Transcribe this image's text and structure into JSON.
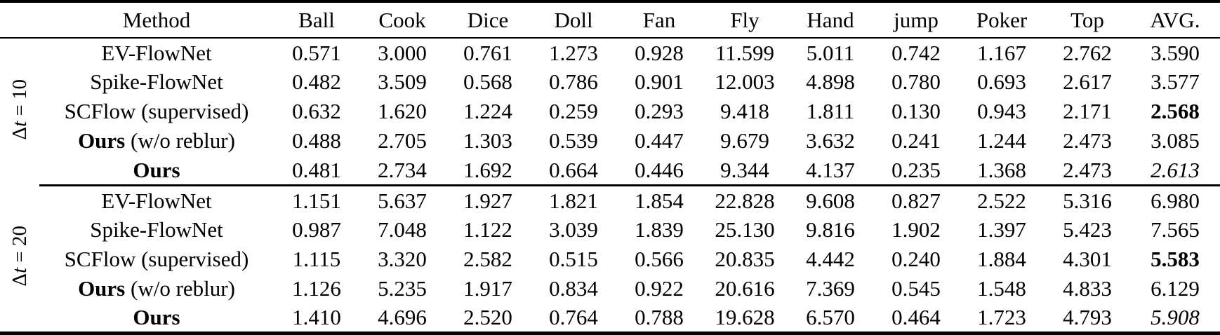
{
  "colors": {
    "text": "#000000",
    "background": "#ffffff",
    "rule": "#000000"
  },
  "table": {
    "columns": [
      "Method",
      "Ball",
      "Cook",
      "Dice",
      "Doll",
      "Fan",
      "Fly",
      "Hand",
      "jump",
      "Poker",
      "Top",
      "AVG."
    ],
    "groups": [
      {
        "label": {
          "delta": "Δ",
          "variable": "t",
          "rest": " = 10"
        },
        "rows": [
          {
            "method": {
              "bold": "",
              "rest": "EV-FlowNet"
            },
            "values": [
              "0.571",
              "3.000",
              "0.761",
              "1.273",
              "0.928",
              "11.599",
              "5.011",
              "0.742",
              "1.167",
              "2.762"
            ],
            "avg": {
              "text": "3.590",
              "style": "normal"
            }
          },
          {
            "method": {
              "bold": "",
              "rest": "Spike-FlowNet"
            },
            "values": [
              "0.482",
              "3.509",
              "0.568",
              "0.786",
              "0.901",
              "12.003",
              "4.898",
              "0.780",
              "0.693",
              "2.617"
            ],
            "avg": {
              "text": "3.577",
              "style": "normal"
            }
          },
          {
            "method": {
              "bold": "",
              "rest": "SCFlow (supervised)"
            },
            "values": [
              "0.632",
              "1.620",
              "1.224",
              "0.259",
              "0.293",
              "9.418",
              "1.811",
              "0.130",
              "0.943",
              "2.171"
            ],
            "avg": {
              "text": "2.568",
              "style": "bold"
            }
          },
          {
            "method": {
              "bold": "Ours",
              "rest": " (w/o reblur)"
            },
            "values": [
              "0.488",
              "2.705",
              "1.303",
              "0.539",
              "0.447",
              "9.679",
              "3.632",
              "0.241",
              "1.244",
              "2.473"
            ],
            "avg": {
              "text": "3.085",
              "style": "normal"
            }
          },
          {
            "method": {
              "bold": "Ours",
              "rest": ""
            },
            "values": [
              "0.481",
              "2.734",
              "1.692",
              "0.664",
              "0.446",
              "9.344",
              "4.137",
              "0.235",
              "1.368",
              "2.473"
            ],
            "avg": {
              "text": "2.613",
              "style": "italic"
            }
          }
        ]
      },
      {
        "label": {
          "delta": "Δ",
          "variable": "t",
          "rest": " = 20"
        },
        "rows": [
          {
            "method": {
              "bold": "",
              "rest": "EV-FlowNet"
            },
            "values": [
              "1.151",
              "5.637",
              "1.927",
              "1.821",
              "1.854",
              "22.828",
              "9.608",
              "0.827",
              "2.522",
              "5.316"
            ],
            "avg": {
              "text": "6.980",
              "style": "normal"
            }
          },
          {
            "method": {
              "bold": "",
              "rest": "Spike-FlowNet"
            },
            "values": [
              "0.987",
              "7.048",
              "1.122",
              "3.039",
              "1.839",
              "25.130",
              "9.816",
              "1.902",
              "1.397",
              "5.423"
            ],
            "avg": {
              "text": "7.565",
              "style": "normal"
            }
          },
          {
            "method": {
              "bold": "",
              "rest": "SCFlow (supervised)"
            },
            "values": [
              "1.115",
              "3.320",
              "2.582",
              "0.515",
              "0.566",
              "20.835",
              "4.442",
              "0.240",
              "1.884",
              "4.301"
            ],
            "avg": {
              "text": "5.583",
              "style": "bold"
            }
          },
          {
            "method": {
              "bold": "Ours",
              "rest": " (w/o reblur)"
            },
            "values": [
              "1.126",
              "5.235",
              "1.917",
              "0.834",
              "0.922",
              "20.616",
              "7.369",
              "0.545",
              "1.548",
              "4.833"
            ],
            "avg": {
              "text": "6.129",
              "style": "normal"
            }
          },
          {
            "method": {
              "bold": "Ours",
              "rest": ""
            },
            "values": [
              "1.410",
              "4.696",
              "2.520",
              "0.764",
              "0.788",
              "19.628",
              "6.570",
              "0.464",
              "1.723",
              "4.793"
            ],
            "avg": {
              "text": "5.908",
              "style": "italic"
            }
          }
        ]
      }
    ]
  }
}
